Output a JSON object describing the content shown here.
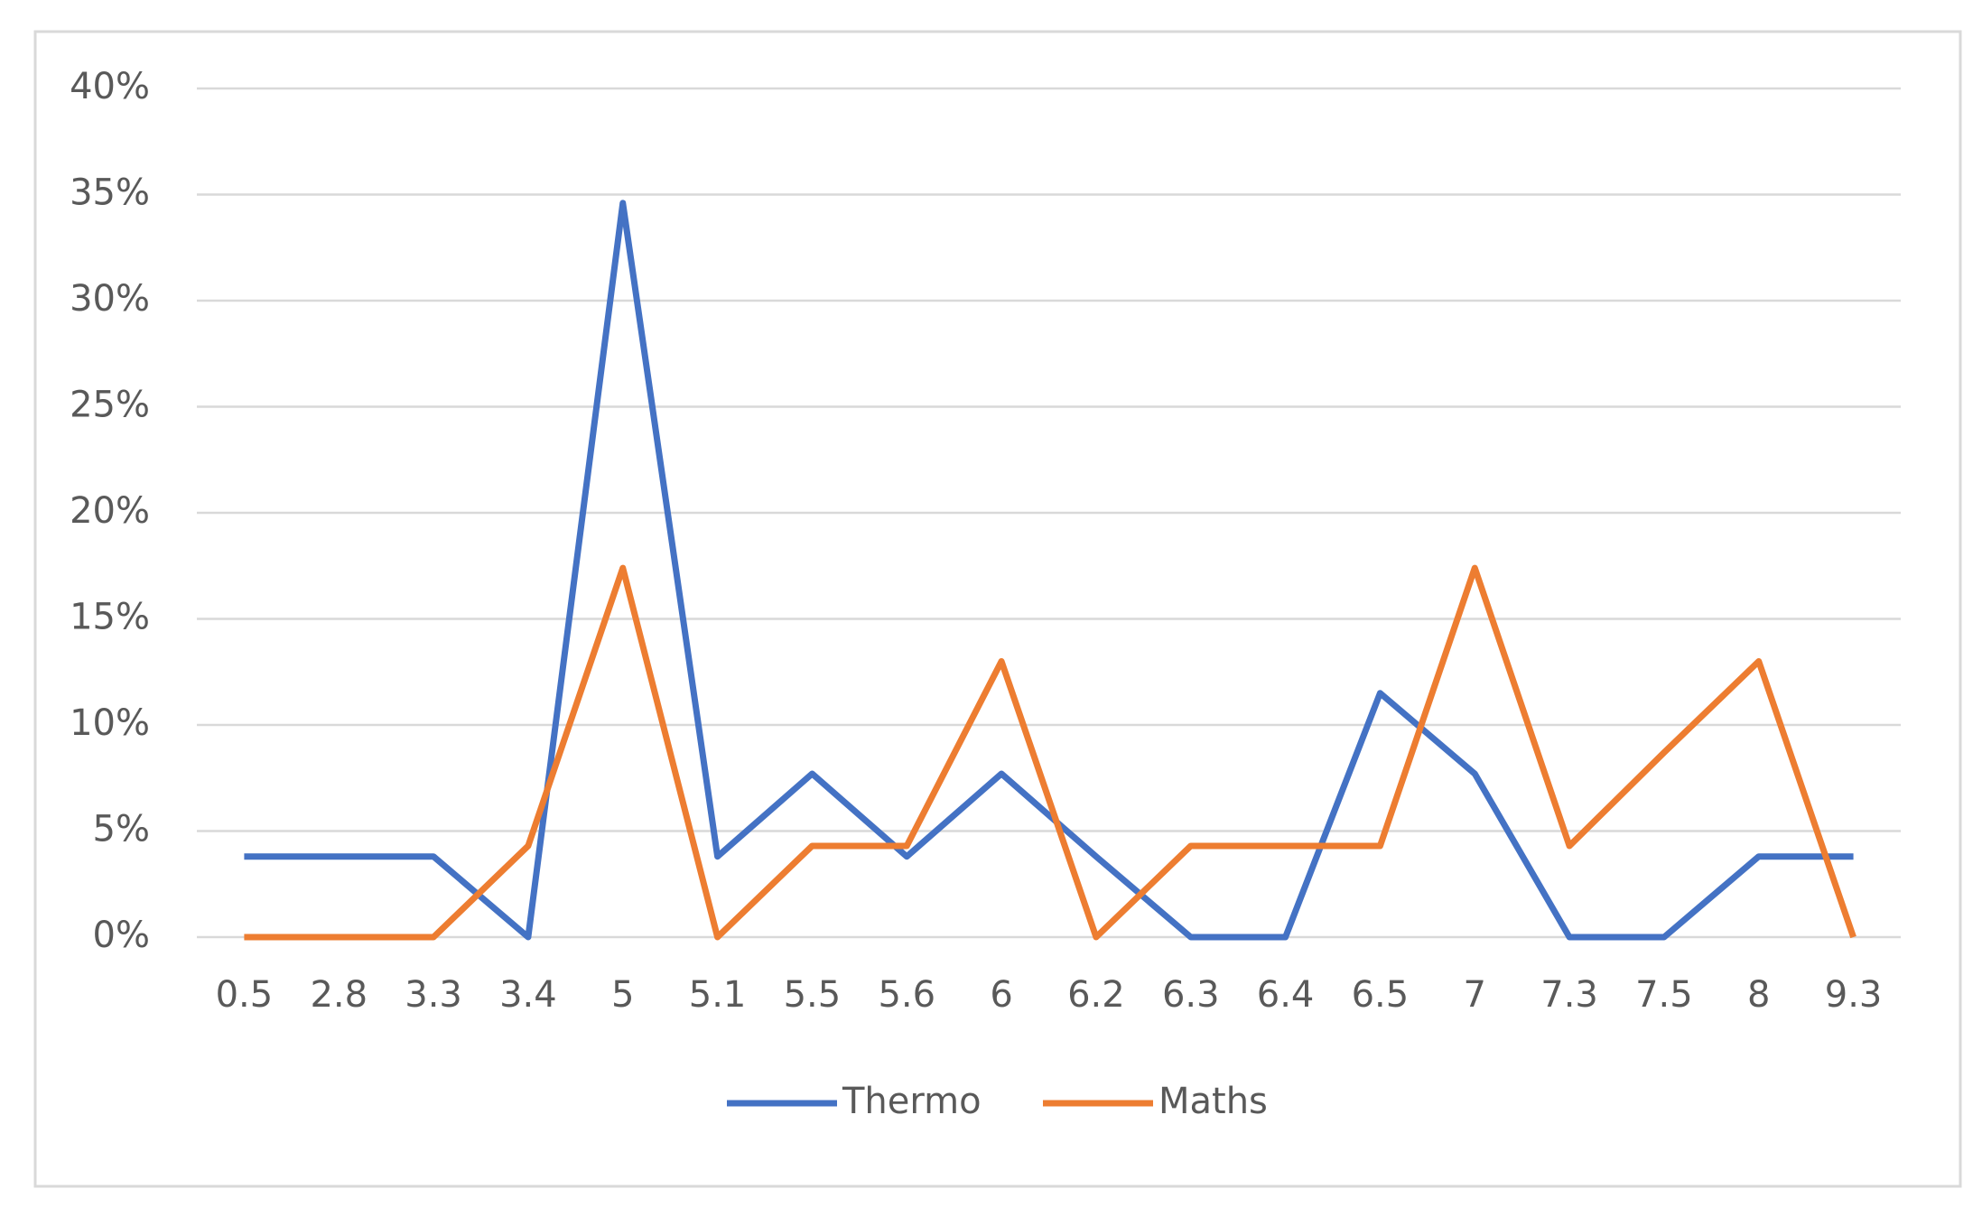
{
  "chart_data": {
    "type": "line",
    "categories": [
      "0.5",
      "2.8",
      "3.3",
      "3.4",
      "5",
      "5.1",
      "5.5",
      "5.6",
      "6",
      "6.2",
      "6.3",
      "6.4",
      "6.5",
      "7",
      "7.3",
      "7.5",
      "8",
      "9.3"
    ],
    "series": [
      {
        "name": "Thermo",
        "color": "#4472c4",
        "values": [
          3.8,
          3.8,
          3.8,
          0,
          34.6,
          3.8,
          7.7,
          3.8,
          7.7,
          3.8,
          0,
          0,
          11.5,
          7.7,
          0,
          0,
          3.8,
          3.8
        ]
      },
      {
        "name": "Maths",
        "color": "#ed7d31",
        "values": [
          0,
          0,
          0,
          4.3,
          17.4,
          0,
          4.3,
          4.3,
          13,
          0,
          4.3,
          4.3,
          4.3,
          17.4,
          4.3,
          8.7,
          13,
          0
        ]
      }
    ],
    "ylim": [
      0,
      40
    ],
    "yticks": [
      {
        "value": 0,
        "label": "0%"
      },
      {
        "value": 5,
        "label": "5%"
      },
      {
        "value": 10,
        "label": "10%"
      },
      {
        "value": 15,
        "label": "15%"
      },
      {
        "value": 20,
        "label": "20%"
      },
      {
        "value": 25,
        "label": "25%"
      },
      {
        "value": 30,
        "label": "30%"
      },
      {
        "value": 35,
        "label": "35%"
      },
      {
        "value": 40,
        "label": "40%"
      }
    ],
    "grid": true,
    "legend": "bottom"
  }
}
